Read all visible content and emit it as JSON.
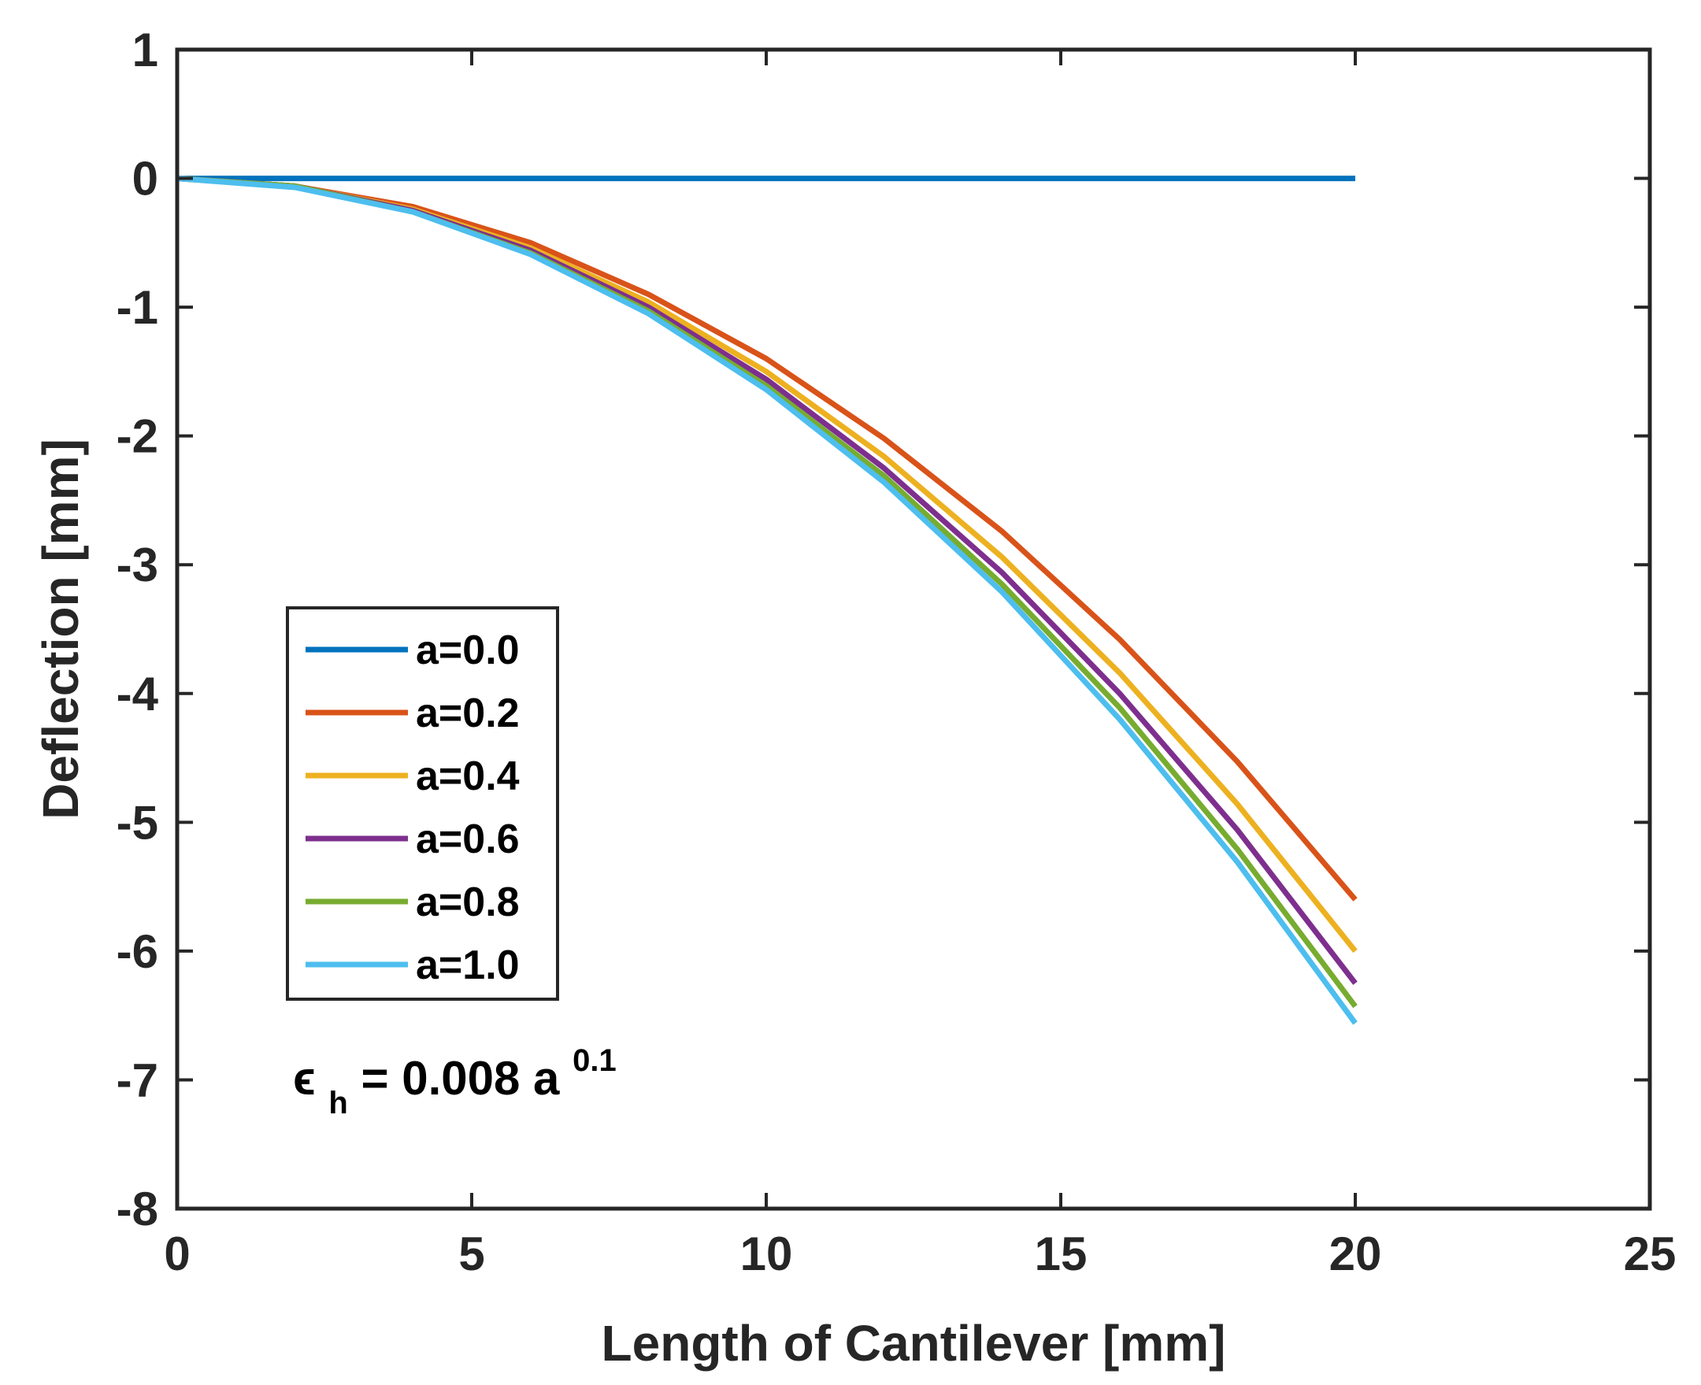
{
  "chart_data": {
    "type": "line",
    "title": "",
    "xlabel": "Length of Cantilever [mm]",
    "ylabel": "Deflection [mm]",
    "xlim": [
      0,
      25
    ],
    "ylim": [
      -8,
      1
    ],
    "xticks": [
      0,
      5,
      10,
      15,
      20,
      25
    ],
    "yticks": [
      1,
      0,
      -1,
      -2,
      -3,
      -4,
      -5,
      -6,
      -7,
      -8
    ],
    "xtick_labels": [
      "0",
      "5",
      "10",
      "15",
      "20",
      "25"
    ],
    "ytick_labels": [
      "1",
      "0",
      "-1",
      "-2",
      "-3",
      "-4",
      "-5",
      "-6",
      "-7",
      "-8"
    ],
    "grid": false,
    "legend_position": "left-middle",
    "x": [
      0,
      2,
      4,
      6,
      8,
      10,
      12,
      14,
      16,
      18,
      20
    ],
    "series": [
      {
        "name": "a=0.0",
        "color": "#0072BD",
        "values": [
          0,
          0,
          0,
          0,
          0,
          0,
          0,
          0,
          0,
          0,
          0
        ]
      },
      {
        "name": "a=0.2",
        "color": "#D95319",
        "values": [
          0,
          -0.06,
          -0.22,
          -0.5,
          -0.9,
          -1.4,
          -2.02,
          -2.74,
          -3.58,
          -4.53,
          -5.6
        ]
      },
      {
        "name": "a=0.4",
        "color": "#EDB120",
        "values": [
          0,
          -0.06,
          -0.24,
          -0.54,
          -0.96,
          -1.5,
          -2.16,
          -2.94,
          -3.84,
          -4.86,
          -6.0
        ]
      },
      {
        "name": "a=0.6",
        "color": "#7E2F8E",
        "values": [
          0,
          -0.06,
          -0.25,
          -0.56,
          -1.0,
          -1.56,
          -2.25,
          -3.06,
          -4.0,
          -5.06,
          -6.25
        ]
      },
      {
        "name": "a=0.8",
        "color": "#77AC30",
        "values": [
          0,
          -0.06,
          -0.26,
          -0.58,
          -1.03,
          -1.61,
          -2.31,
          -3.15,
          -4.11,
          -5.21,
          -6.43
        ]
      },
      {
        "name": "a=1.0",
        "color": "#4DBEEE",
        "values": [
          0,
          -0.07,
          -0.26,
          -0.59,
          -1.05,
          -1.64,
          -2.36,
          -3.21,
          -4.2,
          -5.31,
          -6.56
        ]
      }
    ],
    "annotation": {
      "symbol": "ϵ",
      "subscript": "h",
      "equation": " = 0.008 a",
      "superscript": "0.1"
    }
  }
}
